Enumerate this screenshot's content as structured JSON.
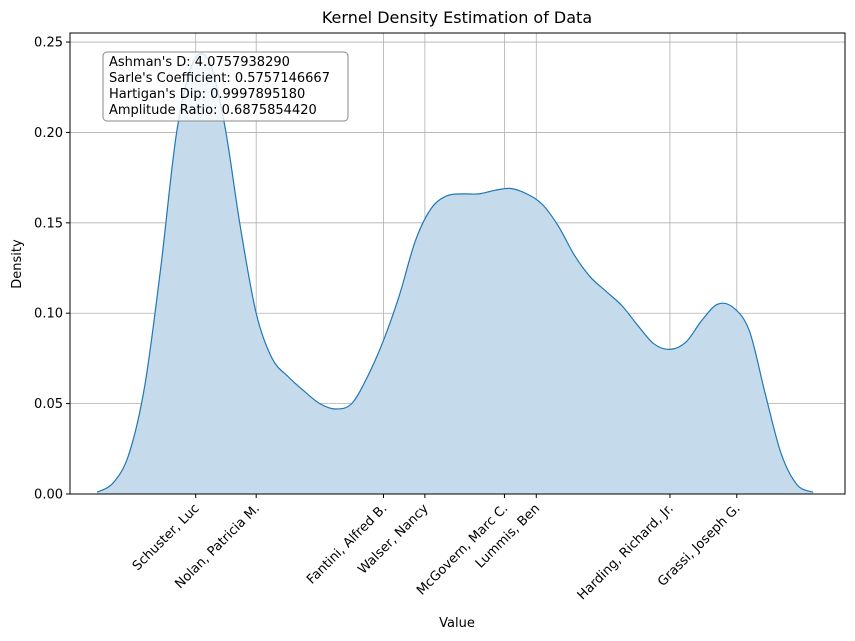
{
  "chart_data": {
    "type": "area",
    "title": "Kernel Density Estimation of Data",
    "xlabel": "Value",
    "ylabel": "Density",
    "ylim": [
      0,
      0.255
    ],
    "yticks": [
      "0.00",
      "0.05",
      "0.10",
      "0.15",
      "0.20",
      "0.25"
    ],
    "ytick_values": [
      0,
      0.05,
      0.1,
      0.15,
      0.2,
      0.25
    ],
    "grid": true,
    "categories": [
      "Schuster, Luc",
      "Nolan, Patricia M.",
      "Fantini, Alfred B.",
      "Walser, Nancy",
      "McGovern, Marc C.",
      "Lummis, Ben",
      "Harding, Richard, Jr.",
      "Grassi, Joseph G."
    ],
    "category_positions": [
      3.1,
      5.0,
      9.0,
      10.3,
      12.8,
      13.8,
      18.0,
      20.1
    ],
    "xlim": [
      -0.85,
      23.5
    ],
    "curve": {
      "x": [
        0,
        0.5,
        1.0,
        1.5,
        2.0,
        2.5,
        3.0,
        3.5,
        4.0,
        4.5,
        5.0,
        5.5,
        6.0,
        6.5,
        7.0,
        7.5,
        8.0,
        8.5,
        9.0,
        9.5,
        10.0,
        10.5,
        11.0,
        11.5,
        12.0,
        12.5,
        13.0,
        13.5,
        14.0,
        14.5,
        15.0,
        15.5,
        16.0,
        16.5,
        17.0,
        17.5,
        18.0,
        18.5,
        19.0,
        19.5,
        20.0,
        20.5,
        21.0,
        21.5,
        22.0,
        22.5
      ],
      "y": [
        0.001,
        0.006,
        0.022,
        0.06,
        0.125,
        0.2,
        0.238,
        0.24,
        0.205,
        0.148,
        0.1,
        0.075,
        0.065,
        0.057,
        0.05,
        0.047,
        0.05,
        0.065,
        0.085,
        0.11,
        0.14,
        0.158,
        0.165,
        0.166,
        0.166,
        0.168,
        0.169,
        0.166,
        0.16,
        0.148,
        0.132,
        0.12,
        0.112,
        0.104,
        0.093,
        0.083,
        0.08,
        0.084,
        0.096,
        0.105,
        0.103,
        0.09,
        0.055,
        0.022,
        0.005,
        0.001
      ]
    },
    "fill_color": "#c5dbec",
    "line_color": "#1f77b4",
    "stats": [
      "Ashman's D: 4.0757938290",
      "Sarle's Coefficient: 0.5757146667",
      "Hartigan's Dip: 0.9997895180",
      "Amplitude Ratio: 0.6875854420"
    ]
  }
}
